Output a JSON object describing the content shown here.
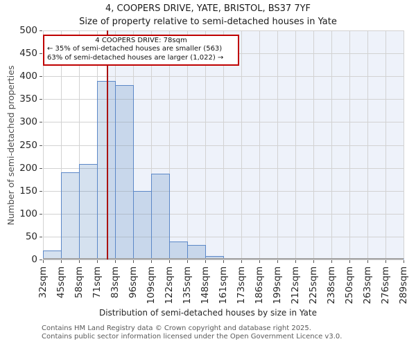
{
  "header": {
    "title": "4, COOPERS DRIVE, YATE, BRISTOL, BS37 7YF",
    "subtitle": "Size of property relative to semi-detached houses in Yate"
  },
  "annotation": {
    "line1": "4 COOPERS DRIVE: 78sqm",
    "line2": "← 35% of semi-detached houses are smaller (563)",
    "line3": "63% of semi-detached houses are larger (1,022) →",
    "border_color": "#bf0000"
  },
  "chart_data": {
    "type": "bar",
    "title": "4, COOPERS DRIVE, YATE, BRISTOL, BS37 7YF",
    "subtitle": "Size of property relative to semi-detached houses in Yate",
    "xlabel": "Distribution of semi-detached houses by size in Yate",
    "ylabel": "Number of semi-detached properties",
    "categories": [
      "32sqm",
      "45sqm",
      "58sqm",
      "71sqm",
      "83sqm",
      "96sqm",
      "109sqm",
      "122sqm",
      "135sqm",
      "148sqm",
      "161sqm",
      "173sqm",
      "186sqm",
      "199sqm",
      "212sqm",
      "225sqm",
      "238sqm",
      "250sqm",
      "263sqm",
      "276sqm",
      "289sqm"
    ],
    "bin_edges_sqm": [
      32,
      45,
      58,
      71,
      83,
      96,
      109,
      122,
      135,
      148,
      161,
      173,
      186,
      199,
      212,
      225,
      238,
      250,
      263,
      276,
      289
    ],
    "values": [
      20,
      190,
      208,
      390,
      380,
      150,
      187,
      40,
      31,
      8,
      2,
      3,
      0,
      0,
      2,
      0,
      0,
      0,
      0,
      2
    ],
    "ylim": [
      0,
      500
    ],
    "ytick_step": 50,
    "grid": true,
    "marker_value_sqm": 78,
    "marker_color": "#aa1111",
    "shaded_region": {
      "from_sqm": 78,
      "to_sqm": 289,
      "color": "#eef2fa"
    },
    "bar_fill_rgba": "rgba(79,129,189,0.24)",
    "bar_border_color": "#5b87c7",
    "gridline_color": "#d2d2d2"
  },
  "footer": {
    "line1": "Contains HM Land Registry data © Crown copyright and database right 2025.",
    "line2": "Contains public sector information licensed under the Open Government Licence v3.0."
  }
}
